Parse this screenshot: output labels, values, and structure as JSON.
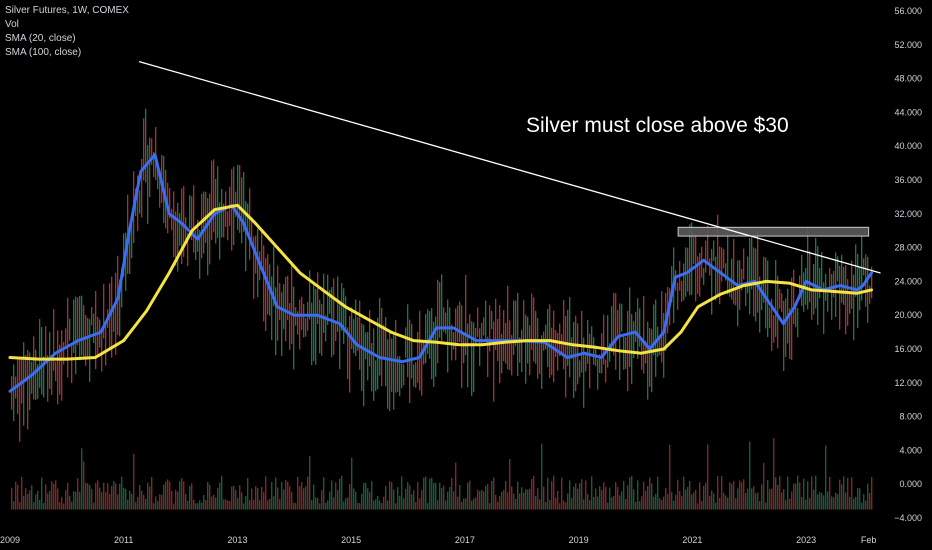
{
  "legend": {
    "title": "Silver Futures, 1W, COMEX",
    "vol": "Vol",
    "sma20": "SMA (20, close)",
    "sma100": "SMA (100, close)"
  },
  "annotation": "Silver must close above $30",
  "colors": {
    "background": "#000000",
    "sma20": "#3a6df0",
    "sma100": "#f5e342",
    "trendline": "#ffffff",
    "resistance_box_fill": "#5a5a5a",
    "resistance_box_stroke": "#e0e0e0",
    "candle_up": "#2e7d55",
    "candle_down": "#b03a3a",
    "axis_text": "#d1d4dc"
  },
  "chart_data": {
    "type": "line",
    "title": "Silver Futures, 1W, COMEX",
    "x_ticks": [
      "2009",
      "2011",
      "2013",
      "2015",
      "2017",
      "2019",
      "2021",
      "2023",
      "Feb"
    ],
    "y_ticks": [
      "56.000",
      "52.000",
      "48.000",
      "44.000",
      "40.000",
      "36.000",
      "32.000",
      "28.000",
      "24.000",
      "20.000",
      "16.000",
      "12.000",
      "8.000",
      "4.000",
      "0.000",
      "−4.000"
    ],
    "ylim": [
      -4,
      56
    ],
    "xlim": [
      2009.0,
      2024.3
    ],
    "series": [
      {
        "name": "SMA (20, close)",
        "x": [
          2009.0,
          2009.4,
          2009.8,
          2010.2,
          2010.6,
          2010.9,
          2011.1,
          2011.3,
          2011.55,
          2011.8,
          2012.0,
          2012.3,
          2012.6,
          2012.9,
          2013.1,
          2013.4,
          2013.7,
          2014.0,
          2014.4,
          2014.8,
          2015.1,
          2015.5,
          2015.9,
          2016.2,
          2016.5,
          2016.8,
          2017.2,
          2017.6,
          2018.0,
          2018.4,
          2018.8,
          2019.1,
          2019.4,
          2019.7,
          2020.0,
          2020.25,
          2020.5,
          2020.7,
          2020.9,
          2021.2,
          2021.5,
          2021.8,
          2022.1,
          2022.4,
          2022.6,
          2022.8,
          2023.0,
          2023.3,
          2023.6,
          2023.9,
          2024.0,
          2024.15
        ],
        "y": [
          11,
          13,
          15.5,
          17,
          18,
          22,
          30,
          37,
          39,
          32,
          31,
          29,
          32,
          33,
          31,
          26,
          21,
          20,
          20,
          19,
          16.5,
          15,
          14.5,
          15,
          18.5,
          18.5,
          17,
          17,
          17,
          16.8,
          15,
          15.5,
          15,
          17.5,
          18,
          16,
          18,
          24.5,
          25,
          26.5,
          25,
          23.5,
          24,
          21,
          19,
          21,
          24,
          23,
          23.5,
          23,
          23.5,
          25
        ]
      },
      {
        "name": "SMA (100, close)",
        "x": [
          2009.0,
          2009.5,
          2010.0,
          2010.5,
          2011.0,
          2011.4,
          2011.8,
          2012.2,
          2012.6,
          2013.0,
          2013.3,
          2013.7,
          2014.1,
          2014.5,
          2014.9,
          2015.3,
          2015.7,
          2016.1,
          2016.5,
          2016.9,
          2017.3,
          2017.7,
          2018.1,
          2018.5,
          2018.9,
          2019.3,
          2019.7,
          2020.1,
          2020.5,
          2020.8,
          2021.1,
          2021.5,
          2021.9,
          2022.3,
          2022.7,
          2023.1,
          2023.5,
          2023.9,
          2024.15
        ],
        "y": [
          15,
          14.8,
          14.8,
          15,
          17,
          20.5,
          25,
          30,
          32.5,
          33,
          31,
          28,
          25,
          23,
          21,
          19.5,
          18,
          17,
          16.8,
          16.5,
          16.5,
          16.8,
          17,
          17,
          16.5,
          16.2,
          15.8,
          15.5,
          16,
          18,
          21,
          22.5,
          23.5,
          24,
          23.8,
          23,
          22.8,
          22.6,
          23
        ]
      },
      {
        "name": "Trendline",
        "x": [
          2011.28,
          2024.3
        ],
        "y": [
          50,
          25
        ]
      }
    ],
    "annotations": [
      {
        "type": "box",
        "label": "resistance zone",
        "x": [
          2020.75,
          2024.1
        ],
        "y": [
          29.6,
          30.4
        ]
      },
      {
        "type": "text",
        "text": "Silver must close above $30"
      }
    ],
    "grid": false,
    "legend": "top-left"
  }
}
